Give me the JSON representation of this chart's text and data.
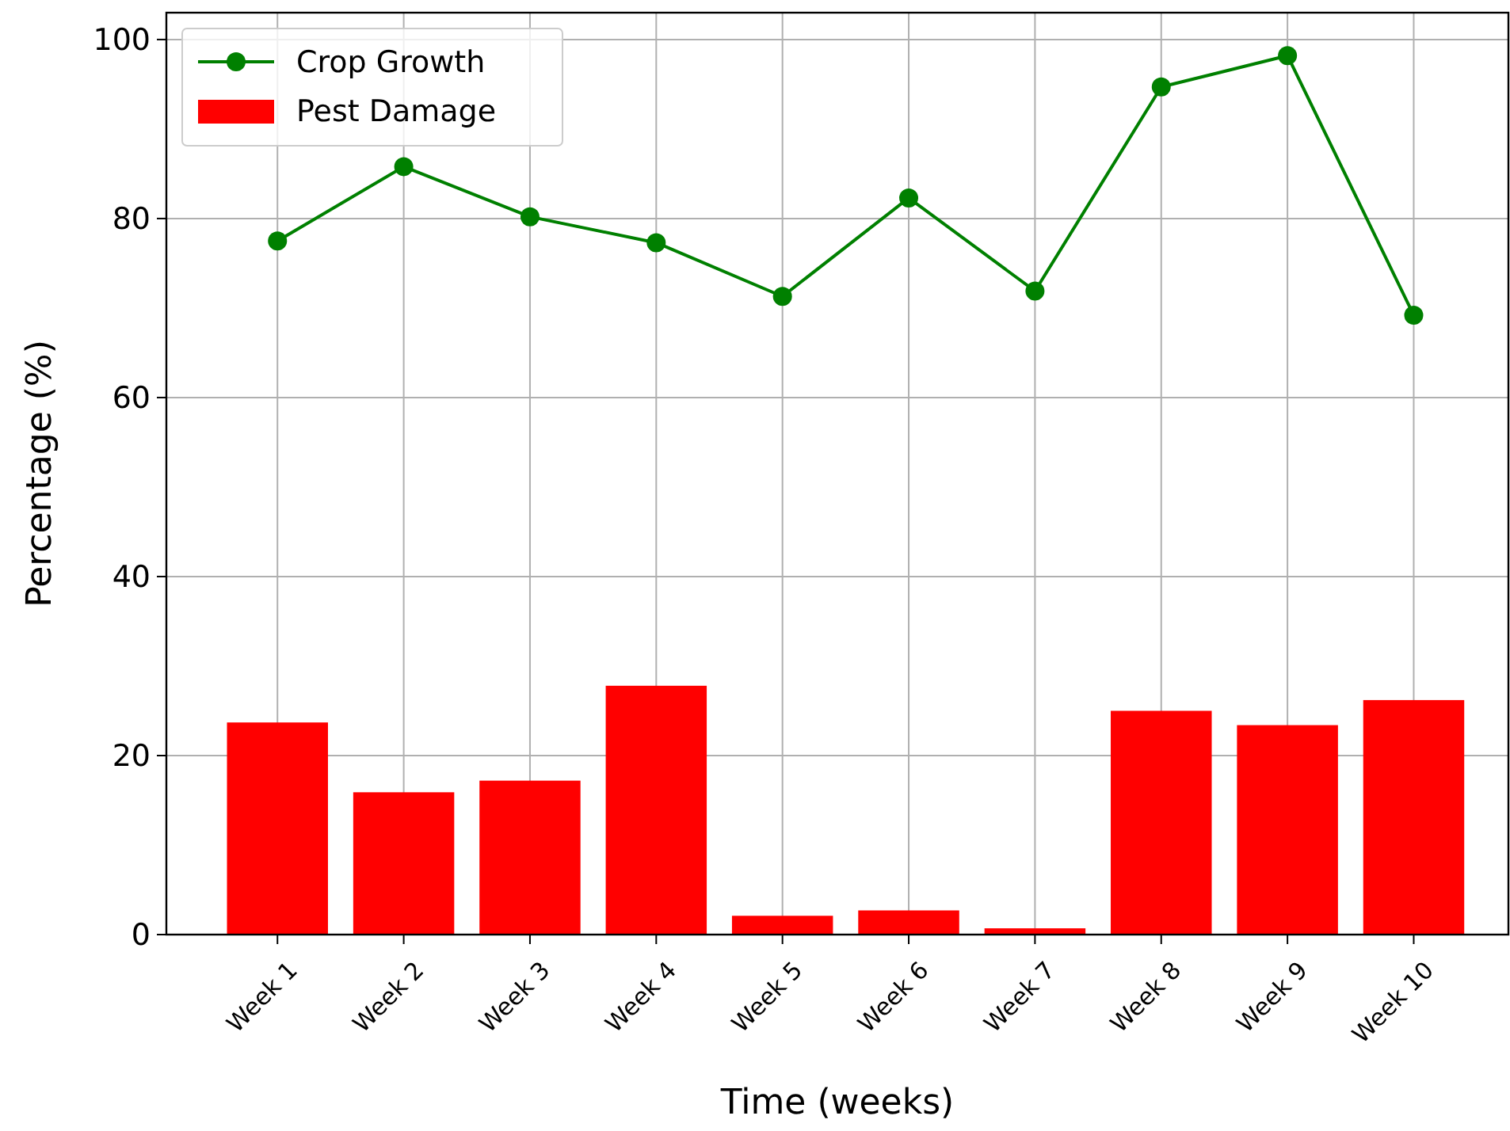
{
  "chart_data": {
    "type": "bar",
    "xlabel": "Time (weeks)",
    "ylabel": "Percentage (%)",
    "categories": [
      "Week 1",
      "Week 2",
      "Week 3",
      "Week 4",
      "Week 5",
      "Week 6",
      "Week 7",
      "Week 8",
      "Week 9",
      "Week 10"
    ],
    "series": [
      {
        "name": "Crop Growth",
        "type": "line",
        "color": "#008000",
        "values": [
          77.5,
          85.8,
          80.2,
          77.3,
          71.3,
          82.3,
          71.9,
          94.7,
          98.2,
          69.2
        ]
      },
      {
        "name": "Pest Damage",
        "color": "#ff0000",
        "values": [
          23.7,
          15.9,
          17.2,
          27.8,
          2.1,
          2.7,
          0.7,
          25.0,
          23.4,
          26.2
        ]
      }
    ],
    "ylim": [
      0,
      103
    ],
    "yticks": [
      0,
      20,
      40,
      60,
      80,
      100
    ],
    "grid": true,
    "legend": "top left",
    "marker": "circle"
  }
}
